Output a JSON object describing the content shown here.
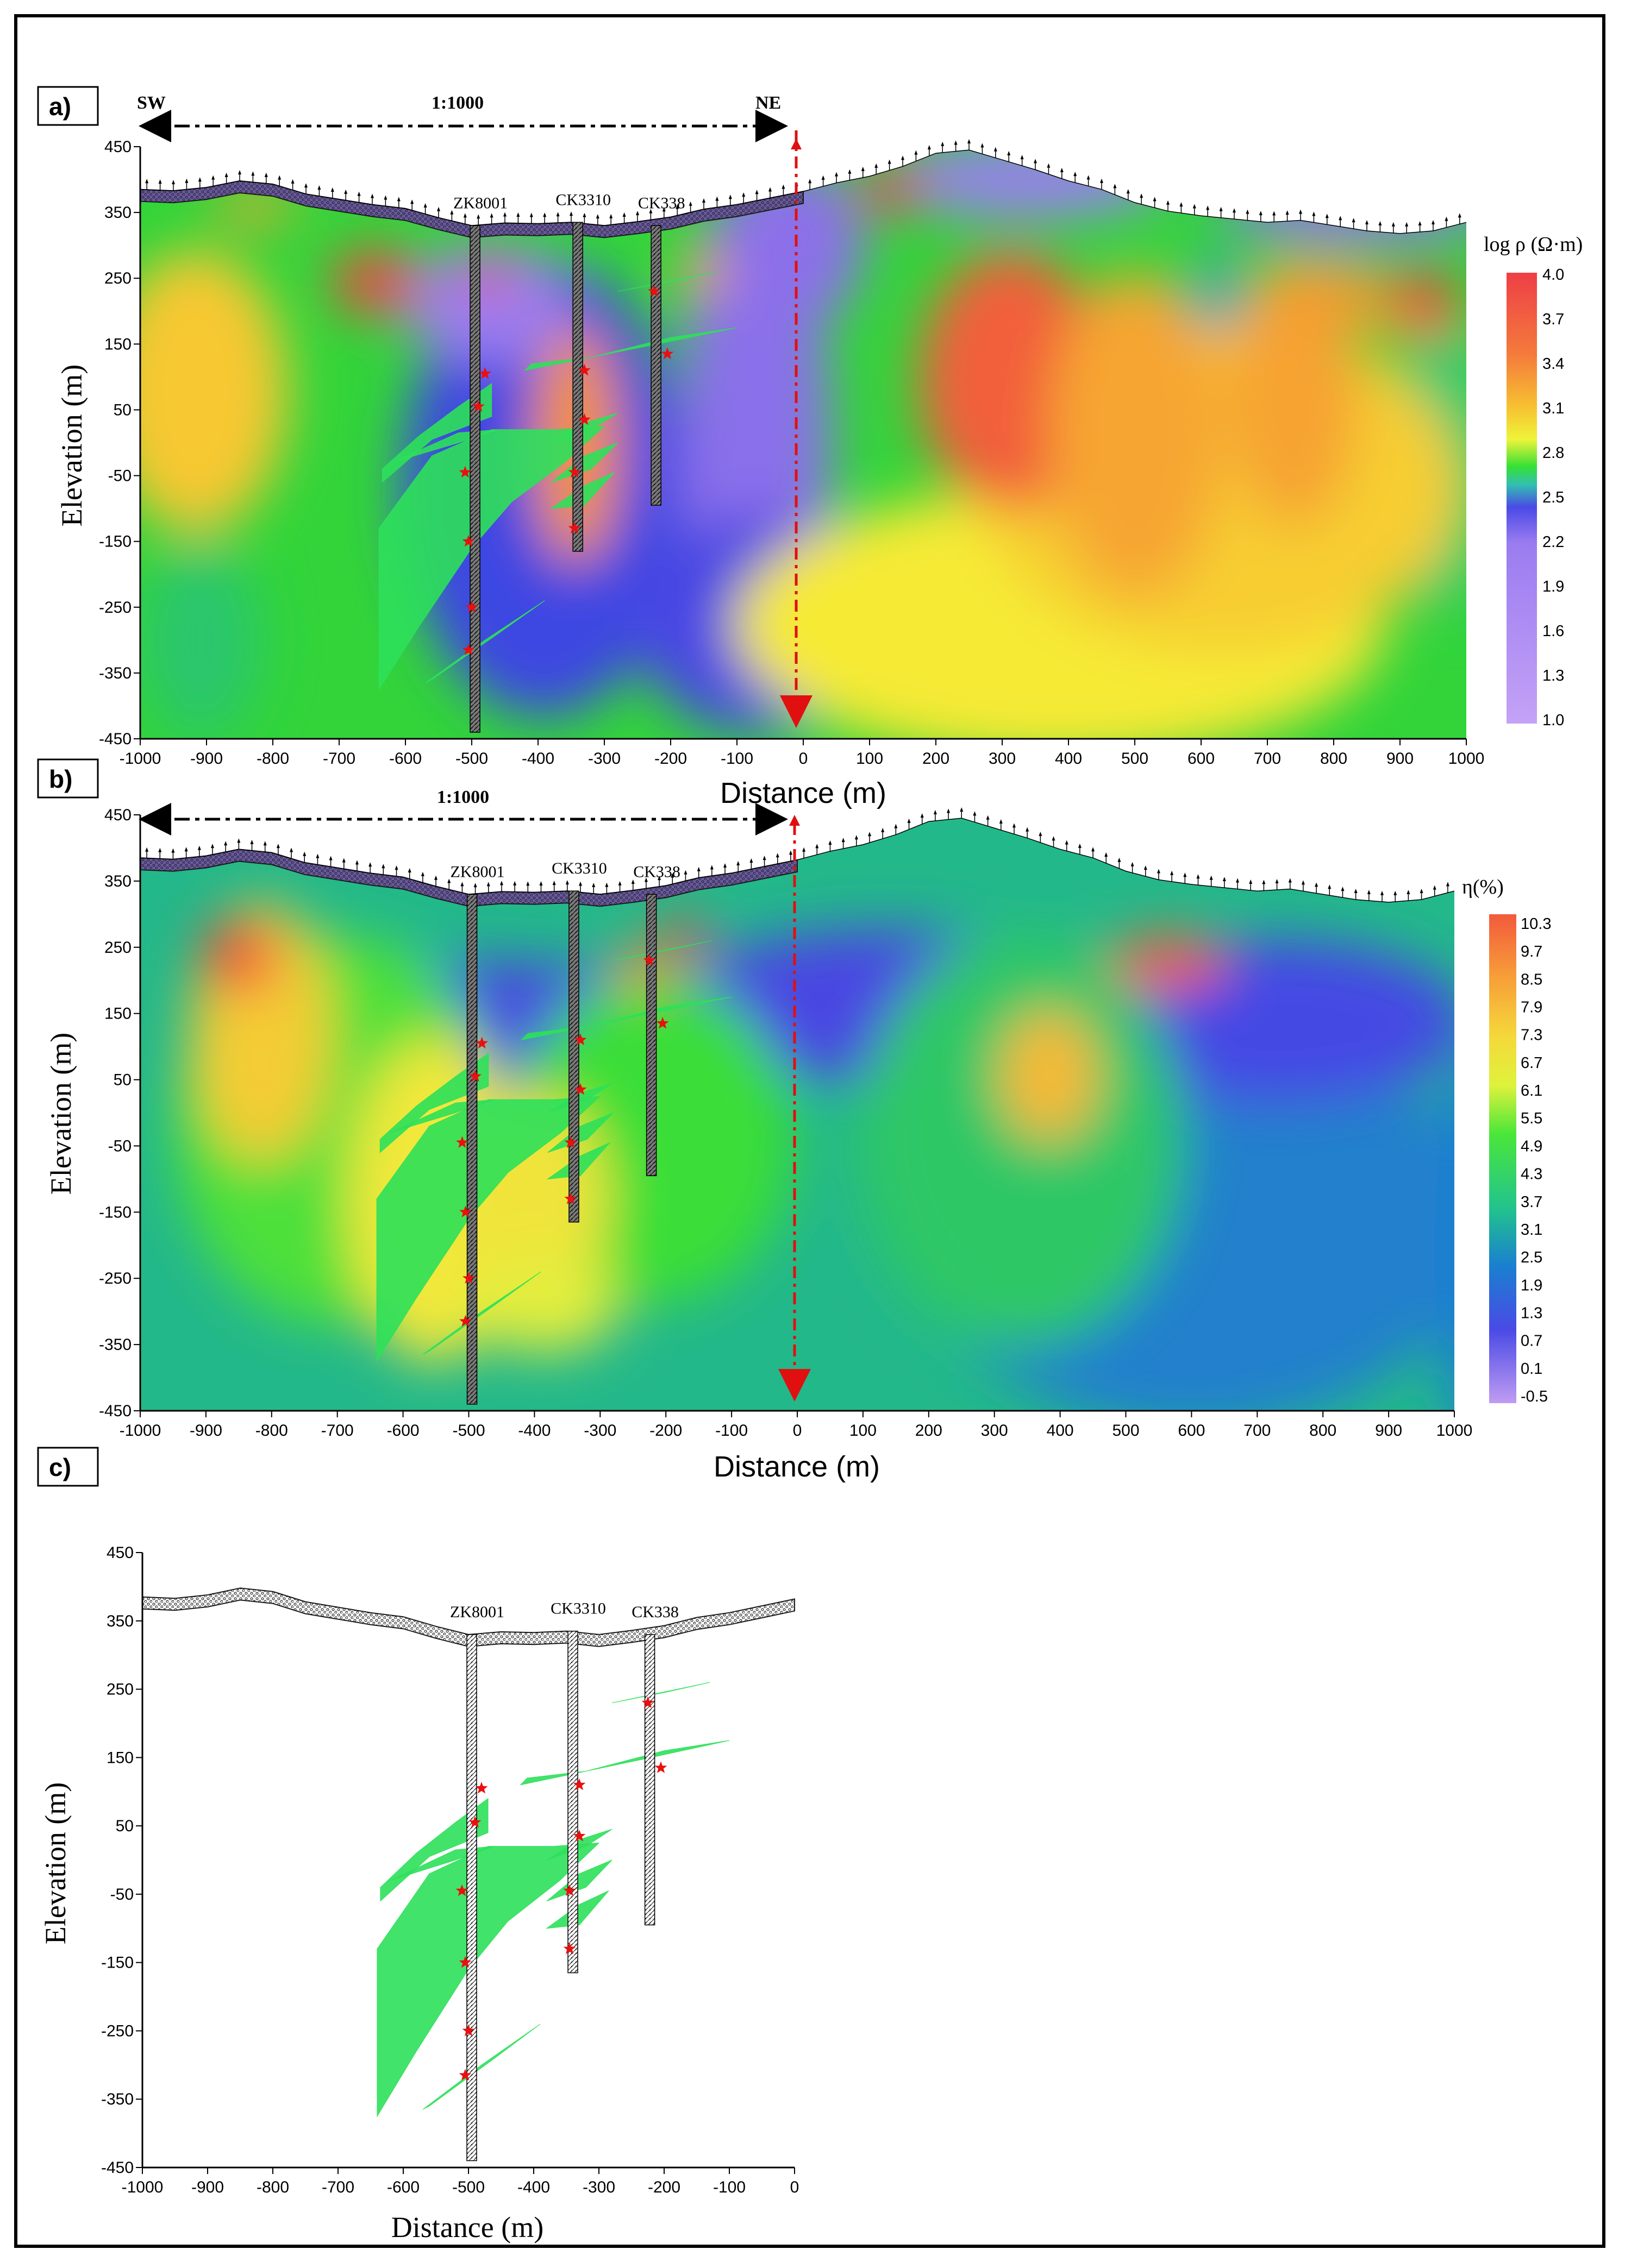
{
  "chart_data": [
    {
      "panel": "a)",
      "type": "heatmap",
      "direction_left": "SW",
      "direction_right": "NE",
      "scale": "1:1000",
      "xlabel": "Distance (m)",
      "ylabel": "Elevation (m)",
      "xlim": [
        -1000,
        1000
      ],
      "ylim": [
        -450,
        450
      ],
      "xticks": [
        -1000,
        -900,
        -800,
        -700,
        -600,
        -500,
        -400,
        -300,
        -200,
        -100,
        0,
        100,
        200,
        300,
        400,
        500,
        600,
        700,
        800,
        900,
        1000
      ],
      "yticks": [
        450,
        350,
        250,
        150,
        50,
        -50,
        -150,
        -250,
        -350,
        -450
      ],
      "drillholes": [
        "ZK8001",
        "CK3310",
        "CK338"
      ],
      "colorbar_title": "log ρ (Ω·m)",
      "colorbar_ticks": [
        "4.0",
        "3.7",
        "3.4",
        "3.1",
        "2.8",
        "2.5",
        "2.2",
        "1.9",
        "1.6",
        "1.3",
        "1.0"
      ],
      "colors": [
        "#e84a4a",
        "#f27040",
        "#f7a035",
        "#f8d631",
        "#f2f33a",
        "#b4ee33",
        "#32e033",
        "#3fc9a2",
        "#2d7fd6",
        "#4545e8",
        "#8c70e8",
        "#b08cf0"
      ]
    },
    {
      "panel": "b)",
      "type": "heatmap",
      "scale": "1:1000",
      "xlabel": "Distance (m)",
      "ylabel": "Elevation (m)",
      "xlim": [
        -1000,
        1000
      ],
      "ylim": [
        -450,
        450
      ],
      "xticks": [
        -1000,
        -900,
        -800,
        -700,
        -600,
        -500,
        -400,
        -300,
        -200,
        -100,
        0,
        100,
        200,
        300,
        400,
        500,
        600,
        700,
        800,
        900,
        1000
      ],
      "yticks": [
        450,
        350,
        250,
        150,
        50,
        -50,
        -150,
        -250,
        -350,
        -450
      ],
      "drillholes": [
        "ZK8001",
        "CK3310",
        "CK338"
      ],
      "colorbar_title": "η(%)",
      "colorbar_ticks": [
        "10.3",
        "9.7",
        "8.5",
        "7.9",
        "7.3",
        "6.7",
        "6.1",
        "5.5",
        "4.9",
        "4.3",
        "3.7",
        "3.1",
        "2.5",
        "1.9",
        "1.3",
        "0.7",
        "0.1",
        "-0.5"
      ]
    },
    {
      "panel": "c)",
      "type": "other",
      "xlabel": "Distance (m)",
      "ylabel": "Elevation (m)",
      "xlim": [
        -1000,
        0
      ],
      "ylim": [
        -450,
        450
      ],
      "xticks": [
        -1000,
        -900,
        -800,
        -700,
        -600,
        -500,
        -400,
        -300,
        -200,
        -100,
        0
      ],
      "yticks": [
        450,
        350,
        250,
        150,
        50,
        -50,
        -150,
        -250,
        -350,
        -450
      ],
      "drillholes": [
        "ZK8001",
        "CK3310",
        "CK338"
      ]
    }
  ]
}
